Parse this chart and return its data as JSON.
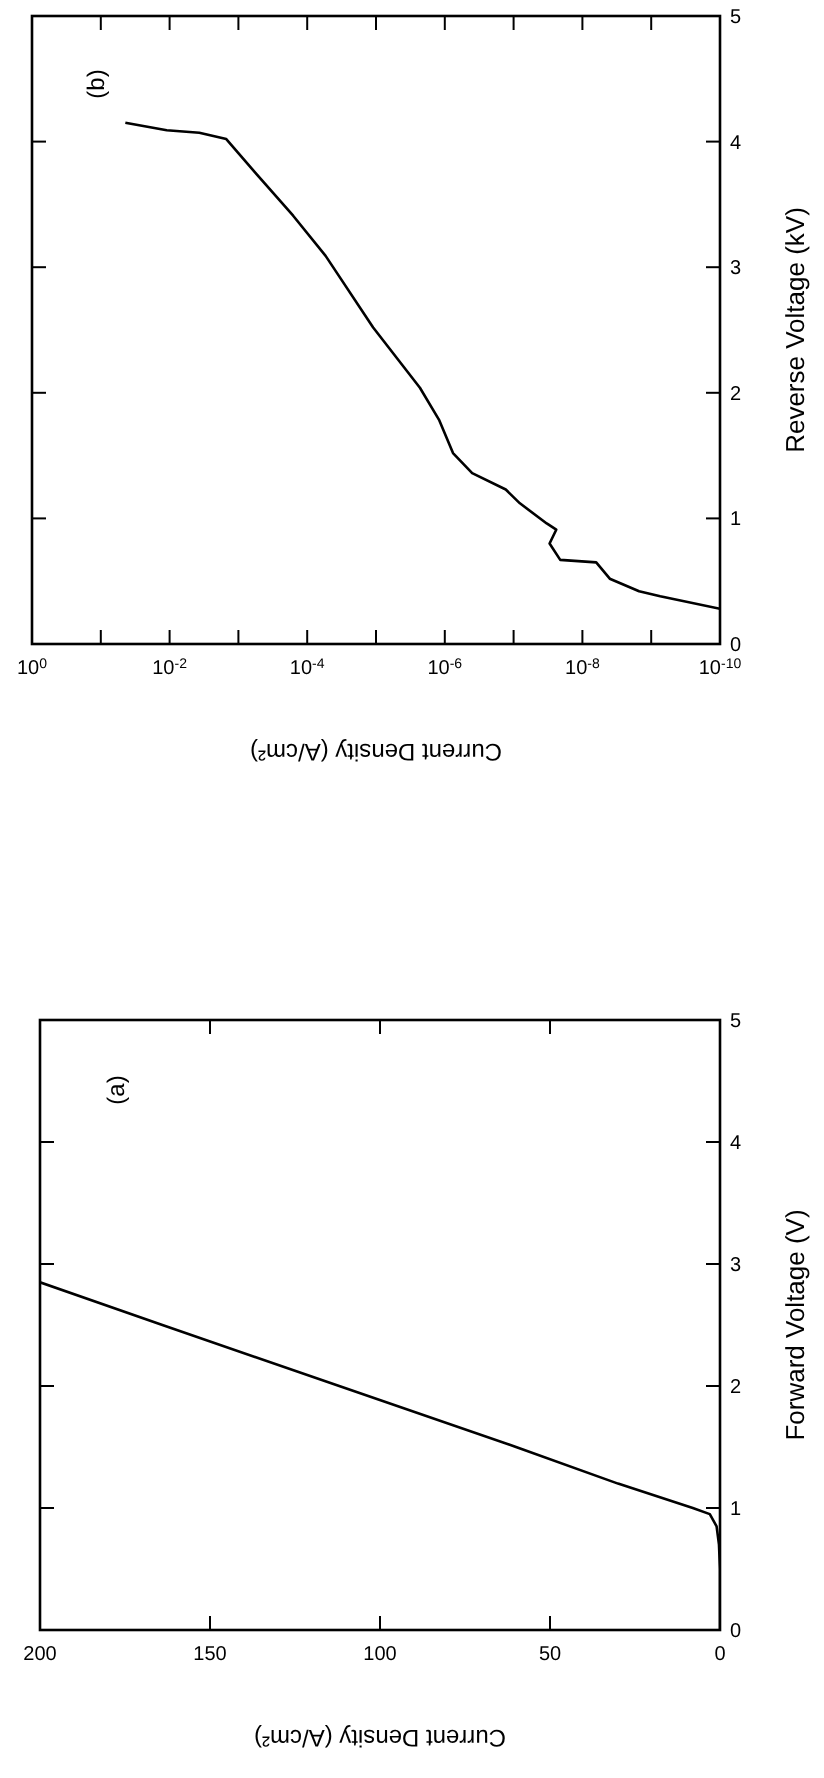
{
  "chart_data": [
    {
      "type": "line",
      "xlabel": "Current Density (A/cm²)",
      "ylabel": "Forward Voltage (V)",
      "annotations": [
        "(a)"
      ],
      "xlim": [
        200,
        0
      ],
      "ylim": [
        0,
        5
      ],
      "xticks": [
        200,
        150,
        100,
        50,
        0
      ],
      "yticks": [
        0,
        1,
        2,
        3,
        4,
        5
      ],
      "x": [
        0,
        0,
        0.3,
        1,
        3,
        8,
        30,
        60,
        112,
        164,
        200
      ],
      "series": [
        {
          "color": "#000000",
          "values": [
            0,
            0.5,
            0.7,
            0.85,
            0.95,
            1.0,
            1.2,
            1.5,
            2.0,
            2.5,
            2.85
          ]
        }
      ]
    },
    {
      "type": "line",
      "log": "x",
      "xlabel": "Current Density (A/cm²)",
      "ylabel": "Reverse Voltage (kV)",
      "annotations": [
        "(b)"
      ],
      "xlim": [
        1,
        1e-10
      ],
      "ylim": [
        0,
        5
      ],
      "yticks": [
        0,
        1,
        2,
        3,
        4,
        5
      ],
      "xticks": [
        {
          "value": 1,
          "label": "10$^{0}$"
        },
        {
          "value": 0.1,
          "label": null
        },
        {
          "value": 0.01,
          "label": "10$^{-2}$"
        },
        {
          "value": 0.001,
          "label": null
        },
        {
          "value": 0.0001,
          "label": "10$^{-4}$"
        },
        {
          "value": 1e-05,
          "label": null
        },
        {
          "value": 1e-06,
          "label": "10$^{-6}$"
        },
        {
          "value": 1e-07,
          "label": null
        },
        {
          "value": 1e-08,
          "label": "10$^{-8}$"
        },
        {
          "value": 1e-09,
          "label": null
        },
        {
          "value": 1e-10,
          "label": "10$^{-10}$"
        }
      ],
      "x": [
        1e-10,
        7.4e-10,
        1.5e-09,
        4e-09,
        6.3e-09,
        2.1e-08,
        3e-08,
        2.4e-08,
        3.3e-08,
        8.1e-08,
        1.3e-07,
        4e-07,
        7.6e-07,
        1.2e-06,
        2.3e-06,
        1.1e-05,
        5.4e-05,
        0.00016,
        0.00063,
        0.0015,
        0.0037,
        0.011,
        0.044
      ],
      "series": [
        {
          "color": "#000000",
          "values": [
            0.28,
            0.38,
            0.42,
            0.52,
            0.65,
            0.67,
            0.8,
            0.91,
            0.96,
            1.12,
            1.23,
            1.36,
            1.52,
            1.78,
            2.04,
            2.52,
            3.09,
            3.41,
            3.78,
            4.02,
            4.07,
            4.09,
            4.15
          ]
        }
      ]
    }
  ]
}
